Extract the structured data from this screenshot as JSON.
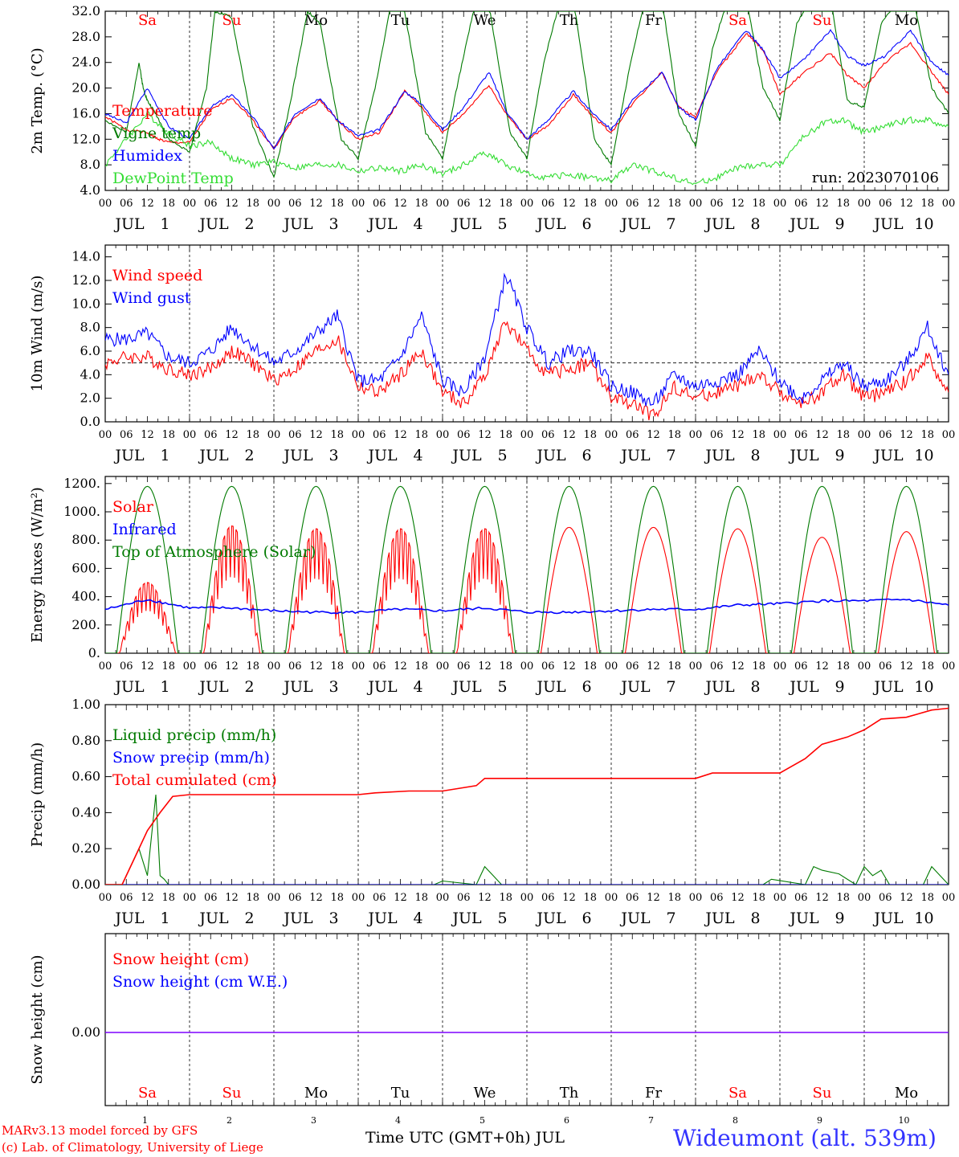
{
  "days": [
    "1",
    "2",
    "3",
    "4",
    "5",
    "6",
    "7",
    "8",
    "9",
    "10"
  ],
  "weekdays": [
    {
      "label": "Sa",
      "color": "#ff0000"
    },
    {
      "label": "Su",
      "color": "#ff0000"
    },
    {
      "label": "Mo",
      "color": "#000000"
    },
    {
      "label": "Tu",
      "color": "#000000"
    },
    {
      "label": "We",
      "color": "#000000"
    },
    {
      "label": "Th",
      "color": "#000000"
    },
    {
      "label": "Fr",
      "color": "#000000"
    },
    {
      "label": "Sa",
      "color": "#ff0000"
    },
    {
      "label": "Su",
      "color": "#ff0000"
    },
    {
      "label": "Mo",
      "color": "#000000"
    }
  ],
  "hour_ticks": [
    "00",
    "06",
    "12",
    "18"
  ],
  "month_label": "JUL",
  "colors": {
    "red": "#ff0000",
    "blue": "#0000ff",
    "green": "#007a00",
    "lightgreen": "#33dd33",
    "purple": "#7f00ff"
  },
  "chart_data": [
    {
      "type": "line",
      "ylabel": "2m Temp. (°C)",
      "ylim": [
        4,
        32
      ],
      "yticks": [
        "4.0",
        "8.0",
        "12.0",
        "16.0",
        "20.0",
        "24.0",
        "28.0",
        "32.0"
      ],
      "annotation": "run: 2023070106",
      "x_unit": "day of July (fractional, UTC)",
      "series": [
        {
          "name": "Temperature",
          "color": "#ff0000",
          "x": [
            1,
            1.25,
            1.5,
            1.6,
            1.75,
            2,
            2.25,
            2.5,
            2.75,
            3,
            3.25,
            3.55,
            3.75,
            4,
            4.25,
            4.55,
            4.75,
            5,
            5.25,
            5.55,
            5.75,
            6,
            6.25,
            6.55,
            6.75,
            7,
            7.25,
            7.6,
            7.8,
            8,
            8.25,
            8.6,
            8.8,
            9,
            9.25,
            9.6,
            9.8,
            10,
            10.25,
            10.55,
            10.8,
            11
          ],
          "y": [
            15.5,
            13.5,
            13,
            12.2,
            11.5,
            11.5,
            16.5,
            18.5,
            15,
            10.5,
            15.5,
            18,
            15,
            12,
            13,
            19.5,
            17,
            13,
            16,
            20.5,
            16,
            12,
            14,
            19,
            16,
            13,
            17.5,
            22.5,
            17,
            15.5,
            22.5,
            28.5,
            26,
            19,
            22,
            25.5,
            22,
            20,
            24,
            27,
            22.5,
            19
          ]
        },
        {
          "name": "Vigne temp",
          "color": "#007a00",
          "x": [
            1,
            1.25,
            1.4,
            1.45,
            1.5,
            1.6,
            1.75,
            2,
            2.2,
            2.3,
            2.5,
            2.75,
            3,
            3.2,
            3.4,
            3.55,
            3.8,
            4,
            4.2,
            4.4,
            4.55,
            4.8,
            5,
            5.2,
            5.4,
            5.55,
            5.8,
            6,
            6.2,
            6.4,
            6.55,
            6.8,
            7,
            7.2,
            7.4,
            7.6,
            7.8,
            8,
            8.2,
            8.4,
            8.6,
            8.8,
            9,
            9.2,
            9.4,
            9.6,
            9.8,
            10,
            10.2,
            10.4,
            10.6,
            10.8,
            11
          ],
          "y": [
            15,
            13,
            24,
            20,
            18,
            16,
            12,
            10,
            20,
            32,
            31,
            14,
            6,
            18,
            32,
            30,
            12,
            9,
            20,
            34,
            32,
            13,
            9,
            22,
            34,
            33,
            13,
            9,
            24,
            34,
            34,
            12,
            8,
            22,
            34,
            34,
            16,
            11,
            26,
            35,
            34,
            20,
            15,
            30,
            35,
            34,
            18,
            17,
            30,
            34,
            33,
            20,
            16
          ]
        },
        {
          "name": "Humidex",
          "color": "#0000ff",
          "x": [
            1,
            1.25,
            1.5,
            1.75,
            2,
            2.25,
            2.5,
            2.75,
            3,
            3.25,
            3.55,
            3.75,
            4,
            4.25,
            4.55,
            4.75,
            5,
            5.25,
            5.55,
            5.75,
            6,
            6.25,
            6.55,
            6.75,
            7,
            7.25,
            7.6,
            7.8,
            8,
            8.25,
            8.6,
            8.8,
            9,
            9.25,
            9.6,
            9.8,
            10,
            10.25,
            10.55,
            10.8,
            11
          ],
          "y": [
            16,
            14.5,
            20,
            14,
            12,
            17,
            19,
            15.5,
            10.5,
            16,
            18.5,
            15,
            12.5,
            13.5,
            19.5,
            17.5,
            13.5,
            17,
            22.5,
            16.5,
            12,
            15,
            19.5,
            16.5,
            13.5,
            18,
            22.5,
            17,
            15,
            23,
            29,
            26,
            21.5,
            24,
            29,
            25,
            23.5,
            25,
            29,
            24,
            22
          ]
        },
        {
          "name": "DewPoint Temp",
          "color": "#33dd33",
          "x": [
            1,
            1.25,
            1.5,
            1.75,
            2,
            2.25,
            2.5,
            2.75,
            3,
            3.25,
            3.5,
            3.75,
            4,
            4.25,
            4.5,
            4.75,
            5,
            5.25,
            5.5,
            5.75,
            6,
            6.25,
            6.5,
            6.75,
            7,
            7.25,
            7.5,
            7.75,
            8,
            8.25,
            8.5,
            8.75,
            9,
            9.25,
            9.5,
            9.75,
            10,
            10.25,
            10.5,
            10.75,
            11
          ],
          "y": [
            8,
            12,
            16,
            13,
            11,
            11.5,
            9,
            8,
            8.5,
            7.5,
            8,
            8,
            7,
            7.5,
            7,
            8,
            6.5,
            8,
            10,
            8,
            6.5,
            6,
            6.5,
            6,
            5.5,
            8,
            7,
            6,
            5,
            6,
            7.5,
            8,
            8,
            12,
            14.5,
            15,
            13,
            14,
            15,
            15,
            14
          ]
        }
      ]
    },
    {
      "type": "line",
      "ylabel": "10m Wind (m/s)",
      "ylim": [
        0,
        15
      ],
      "yticks": [
        "0.0",
        "2.0",
        "4.0",
        "6.0",
        "8.0",
        "10.0",
        "12.0",
        "14.0"
      ],
      "reference_line": 5,
      "x_unit": "day of July (fractional, UTC)",
      "series": [
        {
          "name": "Wind speed",
          "color": "#ff0000",
          "x": [
            1,
            1.25,
            1.5,
            1.75,
            2,
            2.25,
            2.5,
            2.75,
            3,
            3.25,
            3.5,
            3.75,
            4,
            4.25,
            4.5,
            4.75,
            5,
            5.25,
            5.5,
            5.75,
            6,
            6.25,
            6.5,
            6.75,
            7,
            7.25,
            7.5,
            7.75,
            8,
            8.25,
            8.5,
            8.75,
            9,
            9.25,
            9.5,
            9.75,
            10,
            10.25,
            10.5,
            10.75,
            11
          ],
          "y": [
            5,
            5.5,
            5.5,
            4.5,
            4,
            4.5,
            6,
            5,
            3.5,
            4.5,
            6,
            7,
            3,
            2.5,
            4,
            6,
            2.5,
            1.5,
            4,
            8.5,
            6,
            4,
            4.5,
            5,
            2,
            1.5,
            0.5,
            3,
            2,
            2.5,
            3,
            4,
            2.5,
            1.5,
            2.5,
            4,
            2,
            2.5,
            3.5,
            5.5,
            2.5
          ]
        },
        {
          "name": "Wind gust",
          "color": "#0000ff",
          "x": [
            1,
            1.25,
            1.5,
            1.75,
            2,
            2.25,
            2.5,
            2.75,
            3,
            3.25,
            3.5,
            3.75,
            4,
            4.25,
            4.5,
            4.75,
            5,
            5.25,
            5.5,
            5.75,
            6,
            6.25,
            6.5,
            6.75,
            7,
            7.25,
            7.5,
            7.75,
            8,
            8.25,
            8.5,
            8.75,
            9,
            9.25,
            9.5,
            9.75,
            10,
            10.25,
            10.5,
            10.75,
            11
          ],
          "y": [
            7,
            7,
            7.5,
            5.5,
            5,
            6,
            8,
            6.5,
            5,
            6,
            7.5,
            9,
            3.5,
            3.5,
            5.5,
            9,
            3.5,
            2.5,
            5.5,
            12.5,
            8,
            5,
            6,
            6,
            3,
            2.5,
            1.5,
            4,
            3,
            3.5,
            4,
            6,
            3.5,
            2,
            3.5,
            5,
            3,
            3.5,
            5,
            8,
            4
          ]
        }
      ]
    },
    {
      "type": "line",
      "ylabel": "Energy fluxes (W/m²)",
      "ylim": [
        0,
        1250
      ],
      "yticks": [
        "0.",
        "200.",
        "400.",
        "600.",
        "800.",
        "1000.",
        "1200."
      ],
      "x_unit": "day of July (fractional, UTC)",
      "series": [
        {
          "name": "Solar",
          "color": "#ff0000",
          "daily_peak": [
            500,
            900,
            880,
            880,
            880,
            890,
            890,
            880,
            820,
            860
          ]
        },
        {
          "name": "Infrared",
          "color": "#0000ff",
          "x": [
            1,
            1.5,
            2,
            2.5,
            3,
            3.5,
            4,
            4.5,
            5,
            5.5,
            6,
            6.5,
            7,
            7.5,
            8,
            8.5,
            9,
            9.5,
            10,
            10.5,
            11
          ],
          "y": [
            310,
            380,
            320,
            320,
            300,
            290,
            290,
            310,
            300,
            320,
            290,
            290,
            300,
            310,
            310,
            340,
            350,
            370,
            370,
            380,
            340
          ]
        },
        {
          "name": "Top of Atmosphere (Solar)",
          "color": "#007a00",
          "daily_peak": [
            1180,
            1180,
            1180,
            1180,
            1180,
            1180,
            1180,
            1180,
            1180,
            1180
          ]
        }
      ]
    },
    {
      "type": "line",
      "ylabel": "Precip (mm/h)",
      "ylim": [
        0,
        1
      ],
      "yticks": [
        "0.00",
        "0.20",
        "0.40",
        "0.60",
        "0.80",
        "1.00"
      ],
      "x_unit": "day of July (fractional, UTC)",
      "series": [
        {
          "name": "Liquid precip (mm/h)",
          "color": "#007a00",
          "x": [
            1,
            1.2,
            1.3,
            1.4,
            1.5,
            1.6,
            1.65,
            1.7,
            1.75,
            2,
            4.9,
            5,
            5.4,
            5.5,
            5.6,
            5.7,
            8.8,
            8.9,
            9.3,
            9.4,
            9.5,
            9.7,
            9.9,
            10,
            10.1,
            10.2,
            10.3,
            10.7,
            10.8,
            11
          ],
          "y": [
            0,
            0,
            0.1,
            0.2,
            0.05,
            0.5,
            0.05,
            0.03,
            0,
            0,
            0,
            0.02,
            0,
            0.1,
            0.05,
            0,
            0,
            0.03,
            0,
            0.1,
            0.08,
            0.06,
            0,
            0.1,
            0.05,
            0.08,
            0,
            0,
            0.1,
            0
          ]
        },
        {
          "name": "Snow precip (mm/h)",
          "color": "#0000ff",
          "x": [
            1,
            11
          ],
          "y": [
            0,
            0
          ]
        },
        {
          "name": "Total cumulated (cm)",
          "color": "#ff0000",
          "x": [
            1,
            1.2,
            1.35,
            1.5,
            1.65,
            1.8,
            2,
            3,
            4,
            4.2,
            4.6,
            5,
            5.4,
            5.5,
            6,
            7,
            8,
            8.2,
            8.6,
            9,
            9.3,
            9.5,
            9.8,
            10,
            10.2,
            10.5,
            10.8,
            11
          ],
          "y": [
            0,
            0,
            0.15,
            0.3,
            0.4,
            0.49,
            0.5,
            0.5,
            0.5,
            0.51,
            0.52,
            0.52,
            0.55,
            0.59,
            0.59,
            0.59,
            0.59,
            0.62,
            0.62,
            0.62,
            0.7,
            0.78,
            0.82,
            0.86,
            0.92,
            0.93,
            0.97,
            0.98
          ]
        }
      ]
    },
    {
      "type": "line",
      "ylabel": "Snow height (cm)",
      "yticks": [
        "0.00"
      ],
      "x_unit": "day of July (fractional, UTC)",
      "series": [
        {
          "name": "Snow height (cm)",
          "color": "#ff0000",
          "x": [
            1,
            11
          ],
          "y": [
            0,
            0
          ]
        },
        {
          "name": "Snow height (cm W.E.)",
          "color": "#0000ff",
          "x": [
            1,
            11
          ],
          "y": [
            0,
            0
          ]
        }
      ]
    }
  ],
  "xlabel": "Time UTC (GMT+0h) JUL",
  "footer": {
    "model": "MARv3.13 model forced by GFS",
    "copyright": "(c) Lab. of Climatology, University of Liege",
    "station": "Wideumont (alt. 539m)"
  }
}
